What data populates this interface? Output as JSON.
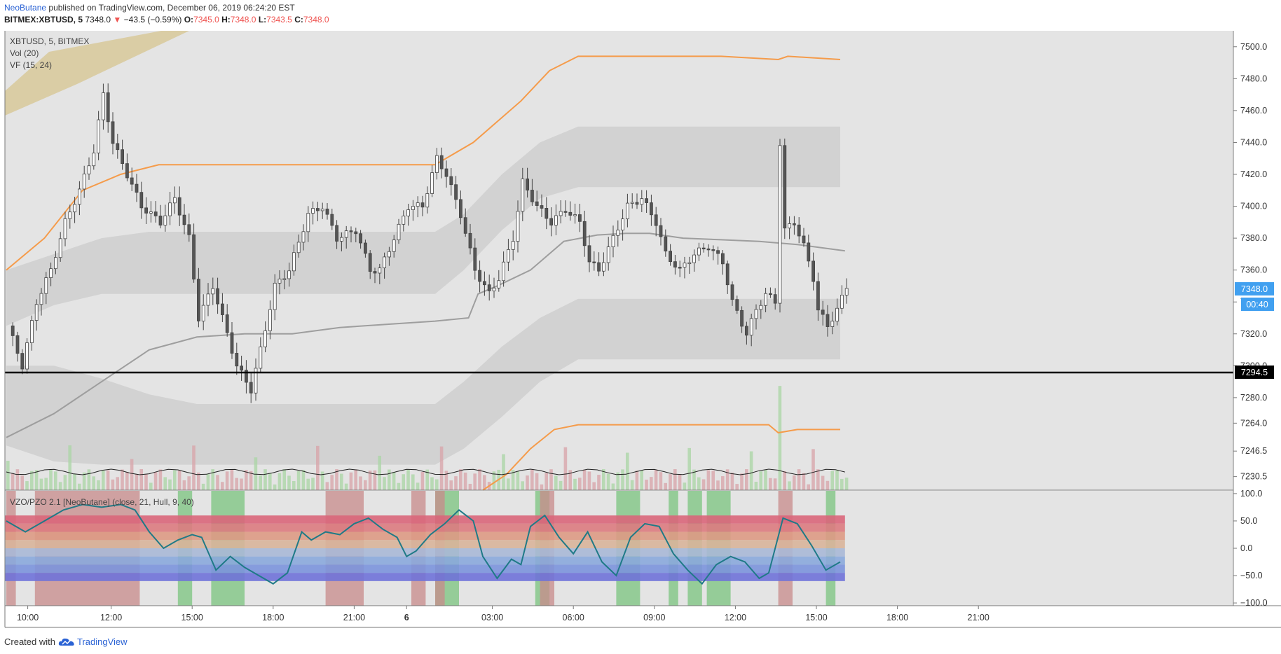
{
  "header": {
    "author": "NeoButane",
    "published": "published on TradingView.com, December 06, 2019 06:24:20 EST",
    "symbol_line": "BITMEX:XBTUSD, 5",
    "last": "7348.0",
    "change": "−43.5 (−0.59%)",
    "open_label": "O:",
    "open": "7345.0",
    "high_label": "H:",
    "high": "7348.0",
    "low_label": "L:",
    "low": "7343.5",
    "close_label": "C:",
    "close": "7348.0"
  },
  "legend": {
    "symbol": "XBTUSD, 5, BITMEX",
    "vol": "Vol (20)",
    "vf": "VF  (15, 24)",
    "osc": "VZO/PZO 2.1 [NeoButane] (close, 21, Hull, 9, 40)"
  },
  "footer": {
    "created": "Created with",
    "brand": "TradingView"
  },
  "colors": {
    "background": "#e4e4e4",
    "orange": "#f59b4a",
    "band": "#cfcfcf",
    "midline": "#9e9e9e",
    "oscillator": "#1f7a87",
    "price_label": "#41a0f0",
    "bull_zone": "#7bc47f",
    "bear_zone": "#c88b8b"
  },
  "chart_data": {
    "type": "line",
    "symbol": "BITMEX:XBTUSD",
    "price_axis": {
      "ticks": [
        "7500.0",
        "7480.0",
        "7460.0",
        "7440.0",
        "7420.0",
        "7400.0",
        "7380.0",
        "7360.0",
        "7340.0",
        "7320.0",
        "7300.0",
        "7280.0",
        "7264.0",
        "7246.5",
        "7230.5"
      ],
      "ylim": [
        7222,
        7510
      ]
    },
    "osc_axis": {
      "ticks": [
        "100.0",
        "50.0",
        "0.0",
        "−50.0",
        "−100.0"
      ],
      "ylim": [
        -105,
        105
      ]
    },
    "time_axis": {
      "ticks": [
        "10:00",
        "12:00",
        "15:00",
        "18:00",
        "21:00",
        "6",
        "03:00",
        "06:00",
        "09:00",
        "12:00",
        "15:00",
        "18:00",
        "21:00"
      ],
      "bold_tick": "6"
    },
    "last_price_label": "7348.0",
    "countdown_label": "00:40",
    "horizontal_line": {
      "value": 7294.5,
      "label": "7294.5"
    },
    "price_path": [
      [
        0,
        7325
      ],
      [
        3,
        7300
      ],
      [
        6,
        7340
      ],
      [
        9,
        7360
      ],
      [
        12,
        7390
      ],
      [
        15,
        7410
      ],
      [
        18,
        7435
      ],
      [
        20,
        7470
      ],
      [
        22,
        7440
      ],
      [
        25,
        7420
      ],
      [
        28,
        7400
      ],
      [
        32,
        7390
      ],
      [
        35,
        7405
      ],
      [
        38,
        7380
      ],
      [
        40,
        7330
      ],
      [
        43,
        7350
      ],
      [
        46,
        7320
      ],
      [
        48,
        7300
      ],
      [
        51,
        7285
      ],
      [
        53,
        7310
      ],
      [
        56,
        7350
      ],
      [
        59,
        7360
      ],
      [
        63,
        7395
      ],
      [
        66,
        7400
      ],
      [
        69,
        7380
      ],
      [
        73,
        7385
      ],
      [
        76,
        7360
      ],
      [
        78,
        7360
      ],
      [
        81,
        7380
      ],
      [
        84,
        7400
      ],
      [
        87,
        7400
      ],
      [
        90,
        7430
      ],
      [
        92,
        7420
      ],
      [
        95,
        7395
      ],
      [
        98,
        7360
      ],
      [
        101,
        7345
      ],
      [
        103,
        7355
      ],
      [
        106,
        7380
      ],
      [
        108,
        7415
      ],
      [
        111,
        7400
      ],
      [
        114,
        7390
      ],
      [
        117,
        7398
      ],
      [
        120,
        7390
      ],
      [
        122,
        7365
      ],
      [
        124,
        7360
      ],
      [
        127,
        7380
      ],
      [
        130,
        7400
      ],
      [
        133,
        7405
      ],
      [
        136,
        7390
      ],
      [
        138,
        7370
      ],
      [
        141,
        7360
      ],
      [
        144,
        7370
      ],
      [
        147,
        7375
      ],
      [
        150,
        7365
      ],
      [
        152,
        7340
      ],
      [
        155,
        7320
      ],
      [
        157,
        7335
      ],
      [
        159,
        7345
      ],
      [
        161,
        7340
      ],
      [
        162,
        7440
      ],
      [
        163,
        7385
      ],
      [
        165,
        7390
      ],
      [
        167,
        7375
      ],
      [
        169,
        7355
      ],
      [
        170,
        7335
      ],
      [
        172,
        7325
      ],
      [
        174,
        7335
      ],
      [
        176,
        7350
      ]
    ],
    "orange_upper": [
      [
        0,
        7360
      ],
      [
        8,
        7380
      ],
      [
        16,
        7410
      ],
      [
        24,
        7420
      ],
      [
        32,
        7426
      ],
      [
        40,
        7426
      ],
      [
        80,
        7426
      ],
      [
        90,
        7426
      ],
      [
        98,
        7440
      ],
      [
        108,
        7466
      ],
      [
        114,
        7485
      ],
      [
        120,
        7494
      ],
      [
        150,
        7494
      ],
      [
        162,
        7492
      ],
      [
        164,
        7494
      ],
      [
        175,
        7492
      ]
    ],
    "orange_lower": [
      [
        100,
        7222
      ],
      [
        105,
        7232
      ],
      [
        110,
        7248
      ],
      [
        115,
        7260
      ],
      [
        120,
        7263
      ],
      [
        160,
        7263
      ],
      [
        162,
        7258
      ],
      [
        166,
        7260
      ],
      [
        175,
        7260
      ]
    ],
    "midline": [
      [
        0,
        7255
      ],
      [
        10,
        7270
      ],
      [
        20,
        7290
      ],
      [
        30,
        7310
      ],
      [
        40,
        7318
      ],
      [
        50,
        7320
      ],
      [
        60,
        7320
      ],
      [
        70,
        7324
      ],
      [
        80,
        7326
      ],
      [
        90,
        7328
      ],
      [
        97,
        7330
      ],
      [
        99,
        7345
      ],
      [
        103,
        7350
      ],
      [
        110,
        7360
      ],
      [
        117,
        7378
      ],
      [
        124,
        7382
      ],
      [
        130,
        7383
      ],
      [
        135,
        7383
      ],
      [
        142,
        7380
      ],
      [
        150,
        7379
      ],
      [
        158,
        7378
      ],
      [
        166,
        7376
      ],
      [
        176,
        7372
      ]
    ],
    "band_upper": {
      "top": [
        [
          0,
          7360
        ],
        [
          10,
          7370
        ],
        [
          20,
          7380
        ],
        [
          30,
          7384
        ],
        [
          40,
          7384
        ],
        [
          60,
          7384
        ],
        [
          80,
          7384
        ],
        [
          90,
          7384
        ],
        [
          96,
          7395
        ],
        [
          104,
          7420
        ],
        [
          112,
          7440
        ],
        [
          120,
          7450
        ],
        [
          160,
          7450
        ],
        [
          175,
          7450
        ]
      ],
      "bottom": [
        [
          0,
          7325
        ],
        [
          10,
          7338
        ],
        [
          20,
          7345
        ],
        [
          30,
          7345
        ],
        [
          40,
          7345
        ],
        [
          60,
          7345
        ],
        [
          80,
          7345
        ],
        [
          90,
          7345
        ],
        [
          96,
          7360
        ],
        [
          104,
          7385
        ],
        [
          112,
          7405
        ],
        [
          120,
          7412
        ],
        [
          160,
          7412
        ],
        [
          175,
          7412
        ]
      ]
    },
    "band_lower": {
      "top": [
        [
          0,
          7300
        ],
        [
          10,
          7300
        ],
        [
          20,
          7292
        ],
        [
          30,
          7282
        ],
        [
          40,
          7276
        ],
        [
          60,
          7276
        ],
        [
          80,
          7276
        ],
        [
          90,
          7276
        ],
        [
          96,
          7290
        ],
        [
          104,
          7312
        ],
        [
          112,
          7330
        ],
        [
          120,
          7342
        ],
        [
          160,
          7342
        ],
        [
          175,
          7342
        ]
      ],
      "bottom": [
        [
          0,
          7250
        ],
        [
          10,
          7240
        ],
        [
          20,
          7238
        ],
        [
          30,
          7238
        ],
        [
          40,
          7238
        ],
        [
          60,
          7238
        ],
        [
          80,
          7238
        ],
        [
          90,
          7238
        ],
        [
          96,
          7248
        ],
        [
          104,
          7268
        ],
        [
          112,
          7290
        ],
        [
          120,
          7304
        ],
        [
          160,
          7304
        ],
        [
          175,
          7304
        ]
      ]
    },
    "oscillator": [
      [
        0,
        50
      ],
      [
        4,
        30
      ],
      [
        8,
        50
      ],
      [
        12,
        70
      ],
      [
        16,
        80
      ],
      [
        20,
        75
      ],
      [
        24,
        80
      ],
      [
        27,
        70
      ],
      [
        30,
        30
      ],
      [
        33,
        0
      ],
      [
        36,
        15
      ],
      [
        39,
        25
      ],
      [
        41,
        20
      ],
      [
        44,
        -40
      ],
      [
        47,
        -15
      ],
      [
        50,
        -35
      ],
      [
        53,
        -50
      ],
      [
        56,
        -65
      ],
      [
        59,
        -45
      ],
      [
        62,
        30
      ],
      [
        64,
        15
      ],
      [
        67,
        30
      ],
      [
        70,
        25
      ],
      [
        73,
        45
      ],
      [
        76,
        55
      ],
      [
        79,
        35
      ],
      [
        82,
        20
      ],
      [
        84,
        -15
      ],
      [
        86,
        -5
      ],
      [
        89,
        25
      ],
      [
        92,
        45
      ],
      [
        95,
        70
      ],
      [
        98,
        50
      ],
      [
        100,
        -15
      ],
      [
        103,
        -55
      ],
      [
        106,
        -20
      ],
      [
        108,
        -30
      ],
      [
        110,
        40
      ],
      [
        113,
        60
      ],
      [
        116,
        20
      ],
      [
        119,
        -10
      ],
      [
        122,
        30
      ],
      [
        125,
        -25
      ],
      [
        128,
        -50
      ],
      [
        131,
        20
      ],
      [
        134,
        45
      ],
      [
        137,
        40
      ],
      [
        140,
        -10
      ],
      [
        143,
        -40
      ],
      [
        146,
        -65
      ],
      [
        149,
        -30
      ],
      [
        152,
        -15
      ],
      [
        155,
        -25
      ],
      [
        158,
        -55
      ],
      [
        160,
        -45
      ],
      [
        163,
        55
      ],
      [
        166,
        45
      ],
      [
        169,
        5
      ],
      [
        172,
        -40
      ],
      [
        175,
        -25
      ]
    ],
    "osc_bands_top_to_bottom": [
      60,
      45,
      30,
      15,
      0,
      -15,
      -30,
      -45,
      -60
    ],
    "bull_zones": [
      [
        36,
        38
      ],
      [
        43,
        49
      ],
      [
        90,
        94
      ],
      [
        111,
        113
      ],
      [
        128,
        132
      ],
      [
        139,
        140
      ],
      [
        143,
        145
      ],
      [
        147,
        151
      ],
      [
        172,
        173
      ]
    ],
    "bear_zones": [
      [
        0,
        1
      ],
      [
        6,
        27
      ],
      [
        67,
        74
      ],
      [
        85,
        87
      ],
      [
        90,
        91
      ],
      [
        112,
        114
      ],
      [
        162,
        164
      ]
    ]
  }
}
